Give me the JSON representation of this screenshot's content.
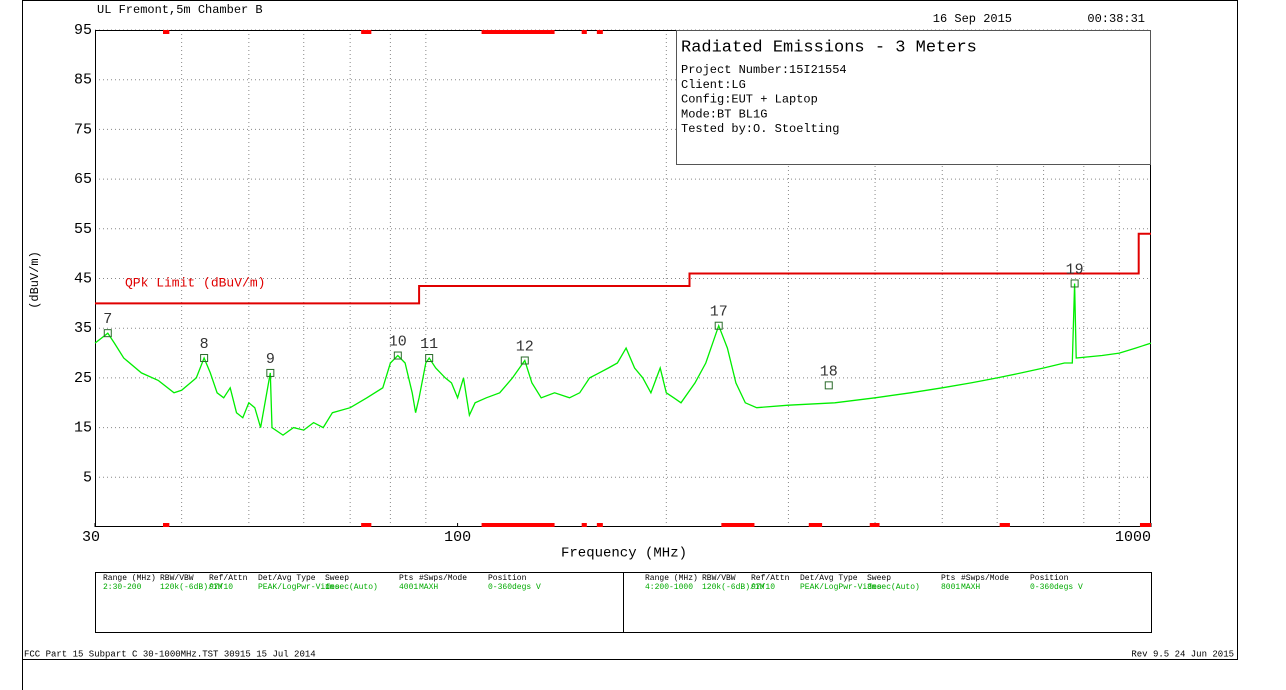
{
  "header": {
    "site": "UL Fremont,5m Chamber B",
    "date": "16 Sep 2015",
    "time": "00:38:31"
  },
  "info": {
    "title": "Radiated Emissions - 3 Meters",
    "lines": [
      "Project Number:15I21554",
      "Client:LG",
      "Config:EUT + Laptop",
      "Mode:BT BL1G",
      "Tested by:O. Stoelting"
    ]
  },
  "chart_data": {
    "type": "line",
    "xlabel": "Frequency (MHz)",
    "ylabel": "(dBuV/m)",
    "xscale": "log",
    "xlim": [
      30,
      1000
    ],
    "xticks": [
      30,
      100,
      1000
    ],
    "xgrid": [
      40,
      50,
      60,
      70,
      80,
      90,
      200,
      300,
      400,
      500,
      600,
      700,
      800,
      900
    ],
    "ylim": [
      -5,
      95
    ],
    "yticks": [
      5,
      15,
      25,
      35,
      45,
      55,
      65,
      75,
      85,
      95
    ],
    "grid": true,
    "bands": [
      [
        37.6,
        38.4
      ],
      [
        72.6,
        75.1
      ],
      [
        108.3,
        138
      ],
      [
        151,
        153.6
      ],
      [
        158.8,
        162
      ],
      [
        240.1,
        268
      ],
      [
        321,
        335.5
      ],
      [
        393,
        406
      ],
      [
        605,
        626
      ],
      [
        964,
        1000
      ]
    ],
    "band_color": "#ff0000",
    "series": [
      {
        "name": "QPk Limit (dBuV/m)",
        "color": "#e00000",
        "x": [
          30,
          88,
          88,
          216,
          216,
          960,
          960,
          1000
        ],
        "values": [
          40,
          40,
          43.5,
          43.5,
          46,
          46,
          54,
          54
        ]
      },
      {
        "color": "#00ee00",
        "x": [
          30,
          31.3,
          32,
          33,
          35,
          37,
          39,
          40,
          42,
          43.1,
          44,
          45,
          46,
          47,
          48,
          49,
          50,
          51,
          52,
          53.7,
          54,
          56,
          58,
          60,
          62,
          64,
          66,
          70,
          74,
          78,
          80,
          82,
          84,
          86,
          87,
          88,
          90,
          91,
          93,
          96,
          98,
          100,
          102,
          104,
          106,
          110,
          115,
          120,
          125,
          128,
          132,
          138,
          145,
          150,
          155,
          160,
          165,
          170,
          175,
          180,
          185,
          190,
          196,
          200,
          205,
          210,
          220,
          228,
          238,
          245,
          252,
          260,
          270,
          300,
          350,
          400,
          450,
          500,
          550,
          600,
          650,
          700,
          750,
          770,
          776,
          780,
          850,
          900,
          950,
          1000
        ],
        "values": [
          32,
          34,
          32,
          29,
          26,
          24.5,
          22,
          22.5,
          25,
          29,
          26,
          22,
          21,
          23,
          18,
          17,
          20,
          19,
          15,
          26,
          15,
          13.5,
          15,
          14.5,
          16,
          15,
          18,
          19,
          21,
          23,
          28,
          29.5,
          28,
          22,
          18,
          21,
          28,
          29,
          27,
          25,
          24,
          21,
          25,
          17.5,
          20,
          21,
          22,
          25,
          28.5,
          24,
          21,
          22,
          21,
          22,
          25,
          26,
          27,
          28,
          31,
          27,
          25,
          22,
          27,
          22,
          21,
          20,
          24,
          28,
          35.5,
          31,
          24,
          20,
          19,
          19.5,
          20,
          21,
          22,
          23,
          24,
          25,
          26,
          27,
          28,
          28,
          44,
          29,
          29.5,
          30,
          31,
          32
        ]
      }
    ],
    "markers": [
      {
        "label": "7",
        "x": 31.3,
        "y": 34
      },
      {
        "label": "8",
        "x": 43.1,
        "y": 29
      },
      {
        "label": "9",
        "x": 53.7,
        "y": 26
      },
      {
        "label": "10",
        "x": 82,
        "y": 29.5
      },
      {
        "label": "11",
        "x": 91,
        "y": 29
      },
      {
        "label": "12",
        "x": 125,
        "y": 28.5
      },
      {
        "label": "17",
        "x": 238,
        "y": 35.5
      },
      {
        "label": "18",
        "x": 343,
        "y": 23.5
      },
      {
        "label": "19",
        "x": 776,
        "y": 44
      }
    ]
  },
  "table": {
    "columns": [
      "Range (MHz)",
      "RBW/VBW",
      "Ref/Attn",
      "Det/Avg Type",
      "Sweep",
      "Pts",
      "#Swps/Mode",
      "Position"
    ],
    "rows": [
      [
        "2:30-200",
        "120k(-6dB)/1M",
        "97/10",
        "PEAK/LogPwr-Video",
        "1msec(Auto)",
        "4001",
        "MAXH",
        "0-360degs V"
      ],
      [
        "4:200-1000",
        "120k(-6dB)/1M",
        "97/10",
        "PEAK/LogPwr-Video",
        "3msec(Auto)",
        "8001",
        "MAXH",
        "0-360degs V"
      ]
    ]
  },
  "footer": {
    "left": "FCC Part 15 Subpart C 30-1000MHz.TST 30915 15 Jul 2014",
    "right": "Rev 9.5 24 Jun 2015"
  }
}
